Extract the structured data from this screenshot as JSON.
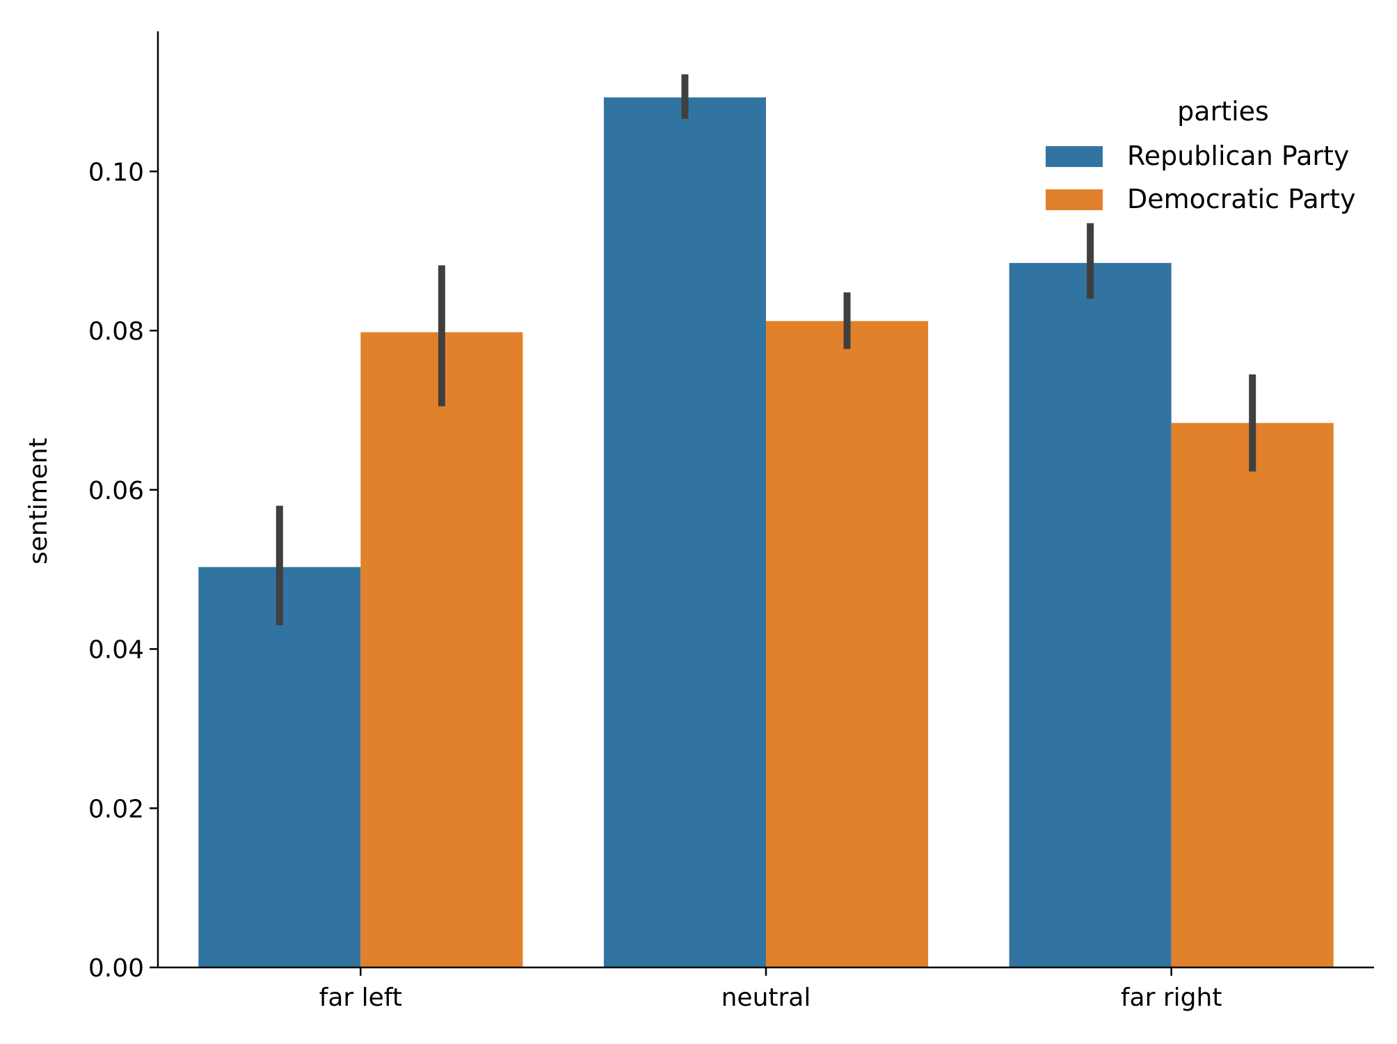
{
  "chart_data": {
    "type": "bar",
    "categories": [
      "far left",
      "neutral",
      "far right"
    ],
    "series": [
      {
        "name": "Republican Party",
        "color": "#3274a1",
        "values": [
          0.0503,
          0.1093,
          0.0885
        ],
        "ci_low": [
          0.043,
          0.1066,
          0.084
        ],
        "ci_high": [
          0.058,
          0.1122,
          0.0935
        ]
      },
      {
        "name": "Democratic Party",
        "color": "#e1812c",
        "values": [
          0.0798,
          0.0812,
          0.0684
        ],
        "ci_low": [
          0.0705,
          0.0777,
          0.0623
        ],
        "ci_high": [
          0.0882,
          0.0848,
          0.0745
        ]
      }
    ],
    "error_bar_color": "#3f3f3f",
    "ylabel": "sentiment",
    "xlabel": "",
    "ylim": [
      0,
      0.1176
    ],
    "yticks": [
      0.0,
      0.02,
      0.04,
      0.06,
      0.08,
      0.1
    ],
    "ytick_labels": [
      "0.00",
      "0.02",
      "0.04",
      "0.06",
      "0.08",
      "0.10"
    ],
    "legend": {
      "title": "parties",
      "placement": "top-right"
    },
    "grid": false
  }
}
